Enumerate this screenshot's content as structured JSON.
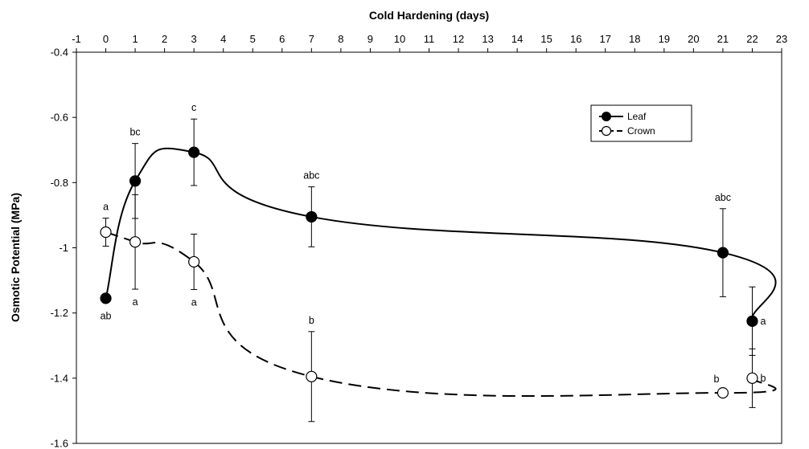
{
  "chart_data": {
    "type": "line",
    "title": "",
    "xlabel": "Cold Hardening (days)",
    "ylabel": "Osmotic Potential (MPa)",
    "xlim": [
      -1,
      23
    ],
    "ylim": [
      -1.6,
      -0.4
    ],
    "x_ticks": [
      -1,
      0,
      1,
      2,
      3,
      4,
      5,
      6,
      7,
      8,
      9,
      10,
      11,
      12,
      13,
      14,
      15,
      16,
      17,
      18,
      19,
      20,
      21,
      22,
      23
    ],
    "y_ticks": [
      -0.4,
      -0.6,
      -0.8,
      -1,
      -1.2,
      -1.4,
      -1.6
    ],
    "x_tick_labels": [
      "-1",
      "0",
      "1",
      "2",
      "3",
      "4",
      "5",
      "6",
      "7",
      "8",
      "9",
      "10",
      "11",
      "12",
      "13",
      "14",
      "15",
      "16",
      "17",
      "18",
      "19",
      "20",
      "21",
      "22",
      "23"
    ],
    "y_tick_labels": [
      "-0.4",
      "-0.6",
      "-0.8",
      "-1",
      "-1.2",
      "-1.4",
      "-1.6"
    ],
    "x_axis_position": "top",
    "grid": false,
    "legend_position": "top-right",
    "series": [
      {
        "name": "Leaf",
        "marker": "filled-circle",
        "line_style": "solid",
        "color": "#000000",
        "points": [
          {
            "x": 0,
            "y": -1.155,
            "err": 0,
            "label": "ab",
            "label_pos": "below"
          },
          {
            "x": 1,
            "y": -0.795,
            "err": 0.115,
            "label": "bc",
            "label_pos": "above"
          },
          {
            "x": 3,
            "y": -0.707,
            "err": 0.102,
            "label": "c",
            "label_pos": "above"
          },
          {
            "x": 7,
            "y": -0.905,
            "err": 0.092,
            "label": "abc",
            "label_pos": "above"
          },
          {
            "x": 21,
            "y": -1.015,
            "err": 0.135,
            "label": "abc",
            "label_pos": "above"
          },
          {
            "x": 22,
            "y": -1.225,
            "err": 0.105,
            "label": "a",
            "label_pos": "right"
          }
        ]
      },
      {
        "name": "Crown",
        "marker": "open-circle",
        "line_style": "dashed",
        "color": "#000000",
        "points": [
          {
            "x": 0,
            "y": -0.952,
            "err": 0.043,
            "label": "a",
            "label_pos": "above"
          },
          {
            "x": 1,
            "y": -0.982,
            "err": 0.145,
            "label": "a",
            "label_pos": "below"
          },
          {
            "x": 3,
            "y": -1.043,
            "err": 0.085,
            "label": "a",
            "label_pos": "below"
          },
          {
            "x": 7,
            "y": -1.395,
            "err": 0.138,
            "label": "b",
            "label_pos": "above"
          },
          {
            "x": 21,
            "y": -1.445,
            "err": 0,
            "label": "b",
            "label_pos": "above-left"
          },
          {
            "x": 22,
            "y": -1.4,
            "err": 0.09,
            "label": "b",
            "label_pos": "right"
          }
        ]
      }
    ]
  }
}
